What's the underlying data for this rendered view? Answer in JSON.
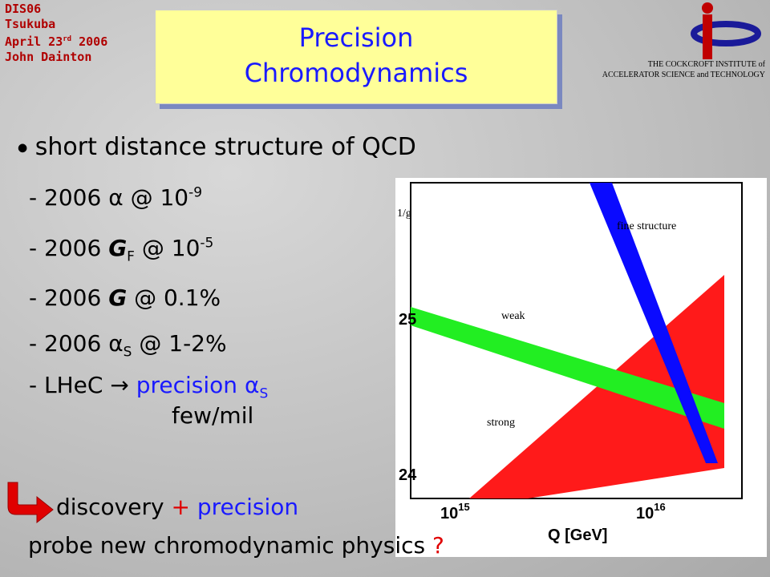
{
  "header": {
    "conference": [
      "DIS06",
      "Tsukuba",
      "April 23",
      "rd",
      "2006",
      "John Dainton"
    ],
    "title": [
      "Precision",
      "Chromodynamics"
    ],
    "institute": [
      "THE COCKCROFT INSTITUTE of",
      "ACCELERATOR SCIENCE and TECHNOLOGY"
    ]
  },
  "bullet": "short distance structure of QCD",
  "items": [
    [
      "-",
      "2006",
      "α",
      "@ 10",
      "-9"
    ],
    [
      "-",
      "2006",
      "G",
      "F",
      "@ 10",
      "-5"
    ],
    [
      "-",
      "2006",
      "G",
      "@ 0.1%"
    ],
    [
      "-",
      "2006",
      "α",
      "S",
      "@ 1-2%"
    ],
    [
      "-",
      "LHeC",
      "→",
      "precision",
      "α",
      "S",
      "few/mil"
    ]
  ],
  "figure": {
    "y_label": "1/g",
    "yticks": [
      "25",
      "24"
    ],
    "xticks": [
      [
        "10",
        "15"
      ],
      [
        "10",
        "16"
      ]
    ],
    "x_label": "Q [GeV]",
    "bands": [
      "fine structure",
      "weak",
      "strong"
    ]
  },
  "conclusion": {
    "line1": [
      "discovery",
      "+",
      "precision"
    ],
    "line2": "probe new chromodynamic physics",
    "mark": "?"
  }
}
